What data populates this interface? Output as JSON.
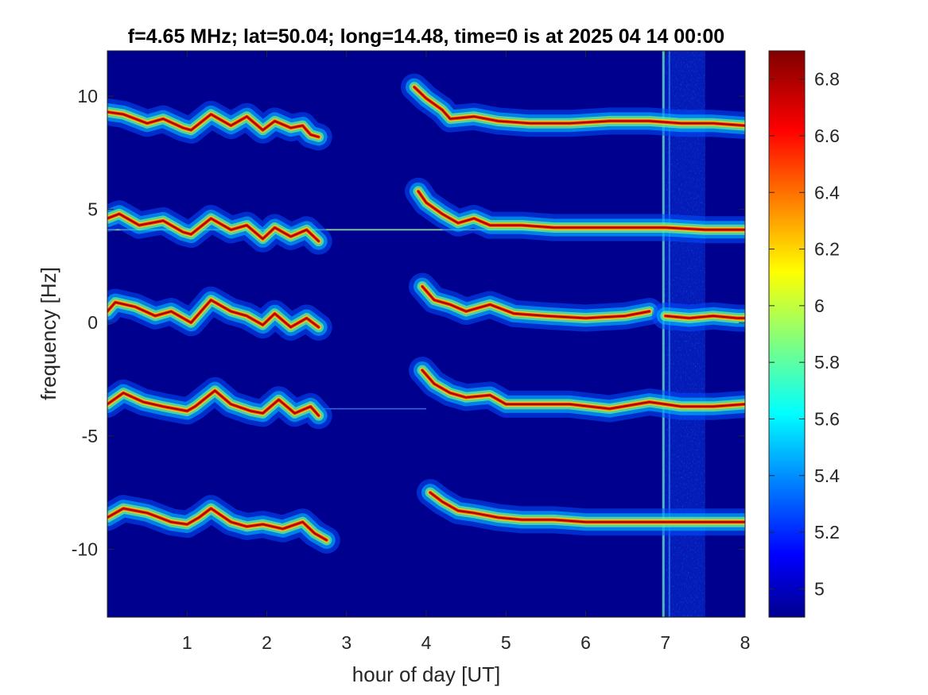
{
  "chart_data": {
    "type": "heatmap",
    "title": "f=4.65 MHz;  lat=50.04; long=14.48, time=0 is at 2025 04 14 00:00",
    "xlabel": "hour of day [UT]",
    "ylabel": "frequency [Hz]",
    "xlim": [
      0,
      8
    ],
    "ylim": [
      -13,
      12
    ],
    "x_ticks": [
      1,
      2,
      3,
      4,
      5,
      6,
      7,
      8
    ],
    "x_tick_labels": [
      "1",
      "2",
      "3",
      "4",
      "5",
      "6",
      "7",
      "8"
    ],
    "y_ticks": [
      10,
      5,
      0,
      -5,
      -10
    ],
    "y_tick_labels": [
      "10",
      "5",
      "0",
      "-5",
      "-10"
    ],
    "colorbar": {
      "clim": [
        4.9,
        6.9
      ],
      "ticks": [
        6.8,
        6.6,
        6.4,
        6.2,
        6.0,
        5.8,
        5.6,
        5.4,
        5.2,
        5.0
      ],
      "tick_labels": [
        "6.8",
        "6.6",
        "6.4",
        "6.2",
        "6",
        "5.8",
        "5.6",
        "5.4",
        "5.2",
        "5"
      ],
      "colormap": "jet"
    },
    "background_value": 4.95,
    "constant_line_freq": 4.1,
    "constant_line_freq_2": -3.8,
    "interference_band_hours": [
      6.98,
      7.5
    ],
    "traces": [
      {
        "segments": [
          {
            "x": [
              0.0,
              0.2,
              0.5,
              0.7,
              0.95,
              1.05,
              1.3,
              1.55,
              1.75,
              1.95,
              2.1,
              2.3,
              2.45,
              2.55,
              2.65
            ],
            "y": [
              9.3,
              9.2,
              8.8,
              9.0,
              8.6,
              8.5,
              9.2,
              8.7,
              9.1,
              8.5,
              8.9,
              8.6,
              8.7,
              8.3,
              8.2
            ]
          },
          {
            "x": [
              3.85,
              4.0,
              4.2,
              4.3,
              4.6,
              4.9,
              5.3,
              5.8,
              6.3,
              6.8,
              7.2,
              7.6,
              8.0
            ],
            "y": [
              10.4,
              9.9,
              9.4,
              9.0,
              9.1,
              8.9,
              8.8,
              8.8,
              8.9,
              8.9,
              8.8,
              8.8,
              8.7
            ]
          }
        ]
      },
      {
        "segments": [
          {
            "x": [
              0.0,
              0.15,
              0.4,
              0.7,
              0.95,
              1.05,
              1.3,
              1.55,
              1.75,
              1.95,
              2.1,
              2.3,
              2.5,
              2.65
            ],
            "y": [
              4.6,
              4.8,
              4.3,
              4.5,
              4.0,
              3.9,
              4.6,
              4.1,
              4.3,
              3.7,
              4.2,
              3.8,
              4.1,
              3.6
            ]
          },
          {
            "x": [
              3.9,
              4.0,
              4.2,
              4.4,
              4.6,
              4.8,
              5.2,
              5.6,
              6.0,
              6.5,
              7.0,
              7.5,
              8.0
            ],
            "y": [
              5.8,
              5.3,
              4.8,
              4.4,
              4.6,
              4.3,
              4.3,
              4.2,
              4.2,
              4.2,
              4.2,
              4.1,
              4.1
            ]
          }
        ]
      },
      {
        "segments": [
          {
            "x": [
              0.0,
              0.1,
              0.35,
              0.6,
              0.8,
              1.05,
              1.3,
              1.55,
              1.75,
              1.95,
              2.1,
              2.3,
              2.5,
              2.65
            ],
            "y": [
              0.5,
              0.9,
              0.7,
              0.3,
              0.5,
              0.0,
              1.0,
              0.5,
              0.3,
              -0.1,
              0.4,
              -0.2,
              0.2,
              -0.2
            ]
          },
          {
            "x": [
              3.95,
              4.1,
              4.3,
              4.5,
              4.8,
              5.1,
              5.5,
              6.0,
              6.5,
              6.8
            ],
            "y": [
              1.6,
              1.0,
              0.8,
              0.5,
              0.8,
              0.4,
              0.3,
              0.2,
              0.3,
              0.5
            ]
          },
          {
            "x": [
              7.0,
              7.3,
              7.6,
              7.9,
              8.0
            ],
            "y": [
              0.3,
              0.2,
              0.3,
              0.2,
              0.2
            ]
          }
        ]
      },
      {
        "segments": [
          {
            "x": [
              0.0,
              0.2,
              0.45,
              0.7,
              1.0,
              1.1,
              1.35,
              1.55,
              1.8,
              1.95,
              2.15,
              2.35,
              2.55,
              2.65
            ],
            "y": [
              -3.6,
              -3.1,
              -3.5,
              -3.7,
              -3.9,
              -3.7,
              -3.0,
              -3.6,
              -3.9,
              -4.0,
              -3.4,
              -4.0,
              -3.7,
              -4.1
            ]
          },
          {
            "x": [
              3.95,
              4.1,
              4.3,
              4.5,
              4.8,
              5.0,
              5.4,
              5.8,
              6.3,
              6.8,
              7.2,
              7.6,
              8.0
            ],
            "y": [
              -2.1,
              -2.7,
              -3.1,
              -3.3,
              -3.2,
              -3.6,
              -3.6,
              -3.6,
              -3.8,
              -3.5,
              -3.7,
              -3.7,
              -3.6
            ]
          }
        ]
      },
      {
        "segments": [
          {
            "x": [
              0.0,
              0.2,
              0.5,
              0.8,
              1.0,
              1.15,
              1.3,
              1.55,
              1.75,
              1.95,
              2.2,
              2.45,
              2.6,
              2.75
            ],
            "y": [
              -8.6,
              -8.2,
              -8.4,
              -8.8,
              -8.9,
              -8.6,
              -8.2,
              -8.8,
              -9.0,
              -8.9,
              -9.1,
              -8.8,
              -9.3,
              -9.6
            ]
          },
          {
            "x": [
              4.05,
              4.2,
              4.4,
              4.6,
              4.9,
              5.2,
              5.6,
              6.0,
              6.5,
              7.0,
              7.5,
              8.0
            ],
            "y": [
              -7.5,
              -7.9,
              -8.3,
              -8.4,
              -8.6,
              -8.7,
              -8.7,
              -8.8,
              -8.8,
              -8.8,
              -8.8,
              -8.8
            ]
          }
        ]
      }
    ]
  }
}
